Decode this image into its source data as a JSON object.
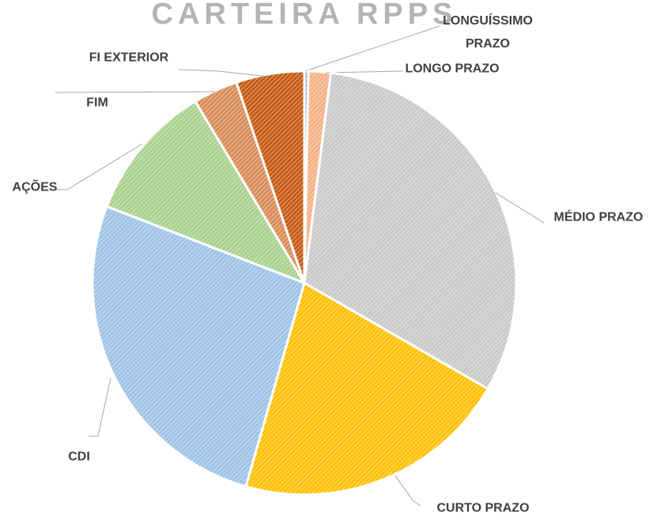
{
  "chart_data": {
    "type": "pie",
    "title": "CARTEIRA RPPS",
    "categories": [
      "LONGUÍSSIMO PRAZO",
      "LONGO PRAZO",
      "MÉDIO PRAZO",
      "CURTO PRAZO",
      "CDI",
      "AÇÕES",
      "FIM",
      "FI EXTERIOR"
    ],
    "values": [
      0.3,
      1.7,
      31.3,
      21.1,
      26.4,
      10.5,
      3.4,
      5.2
    ],
    "colors": [
      "#8faadc",
      "#f4b183",
      "#c9c9c9",
      "#ffc000",
      "#9dc3e6",
      "#a9d18e",
      "#d98b56",
      "#c55a11"
    ]
  }
}
